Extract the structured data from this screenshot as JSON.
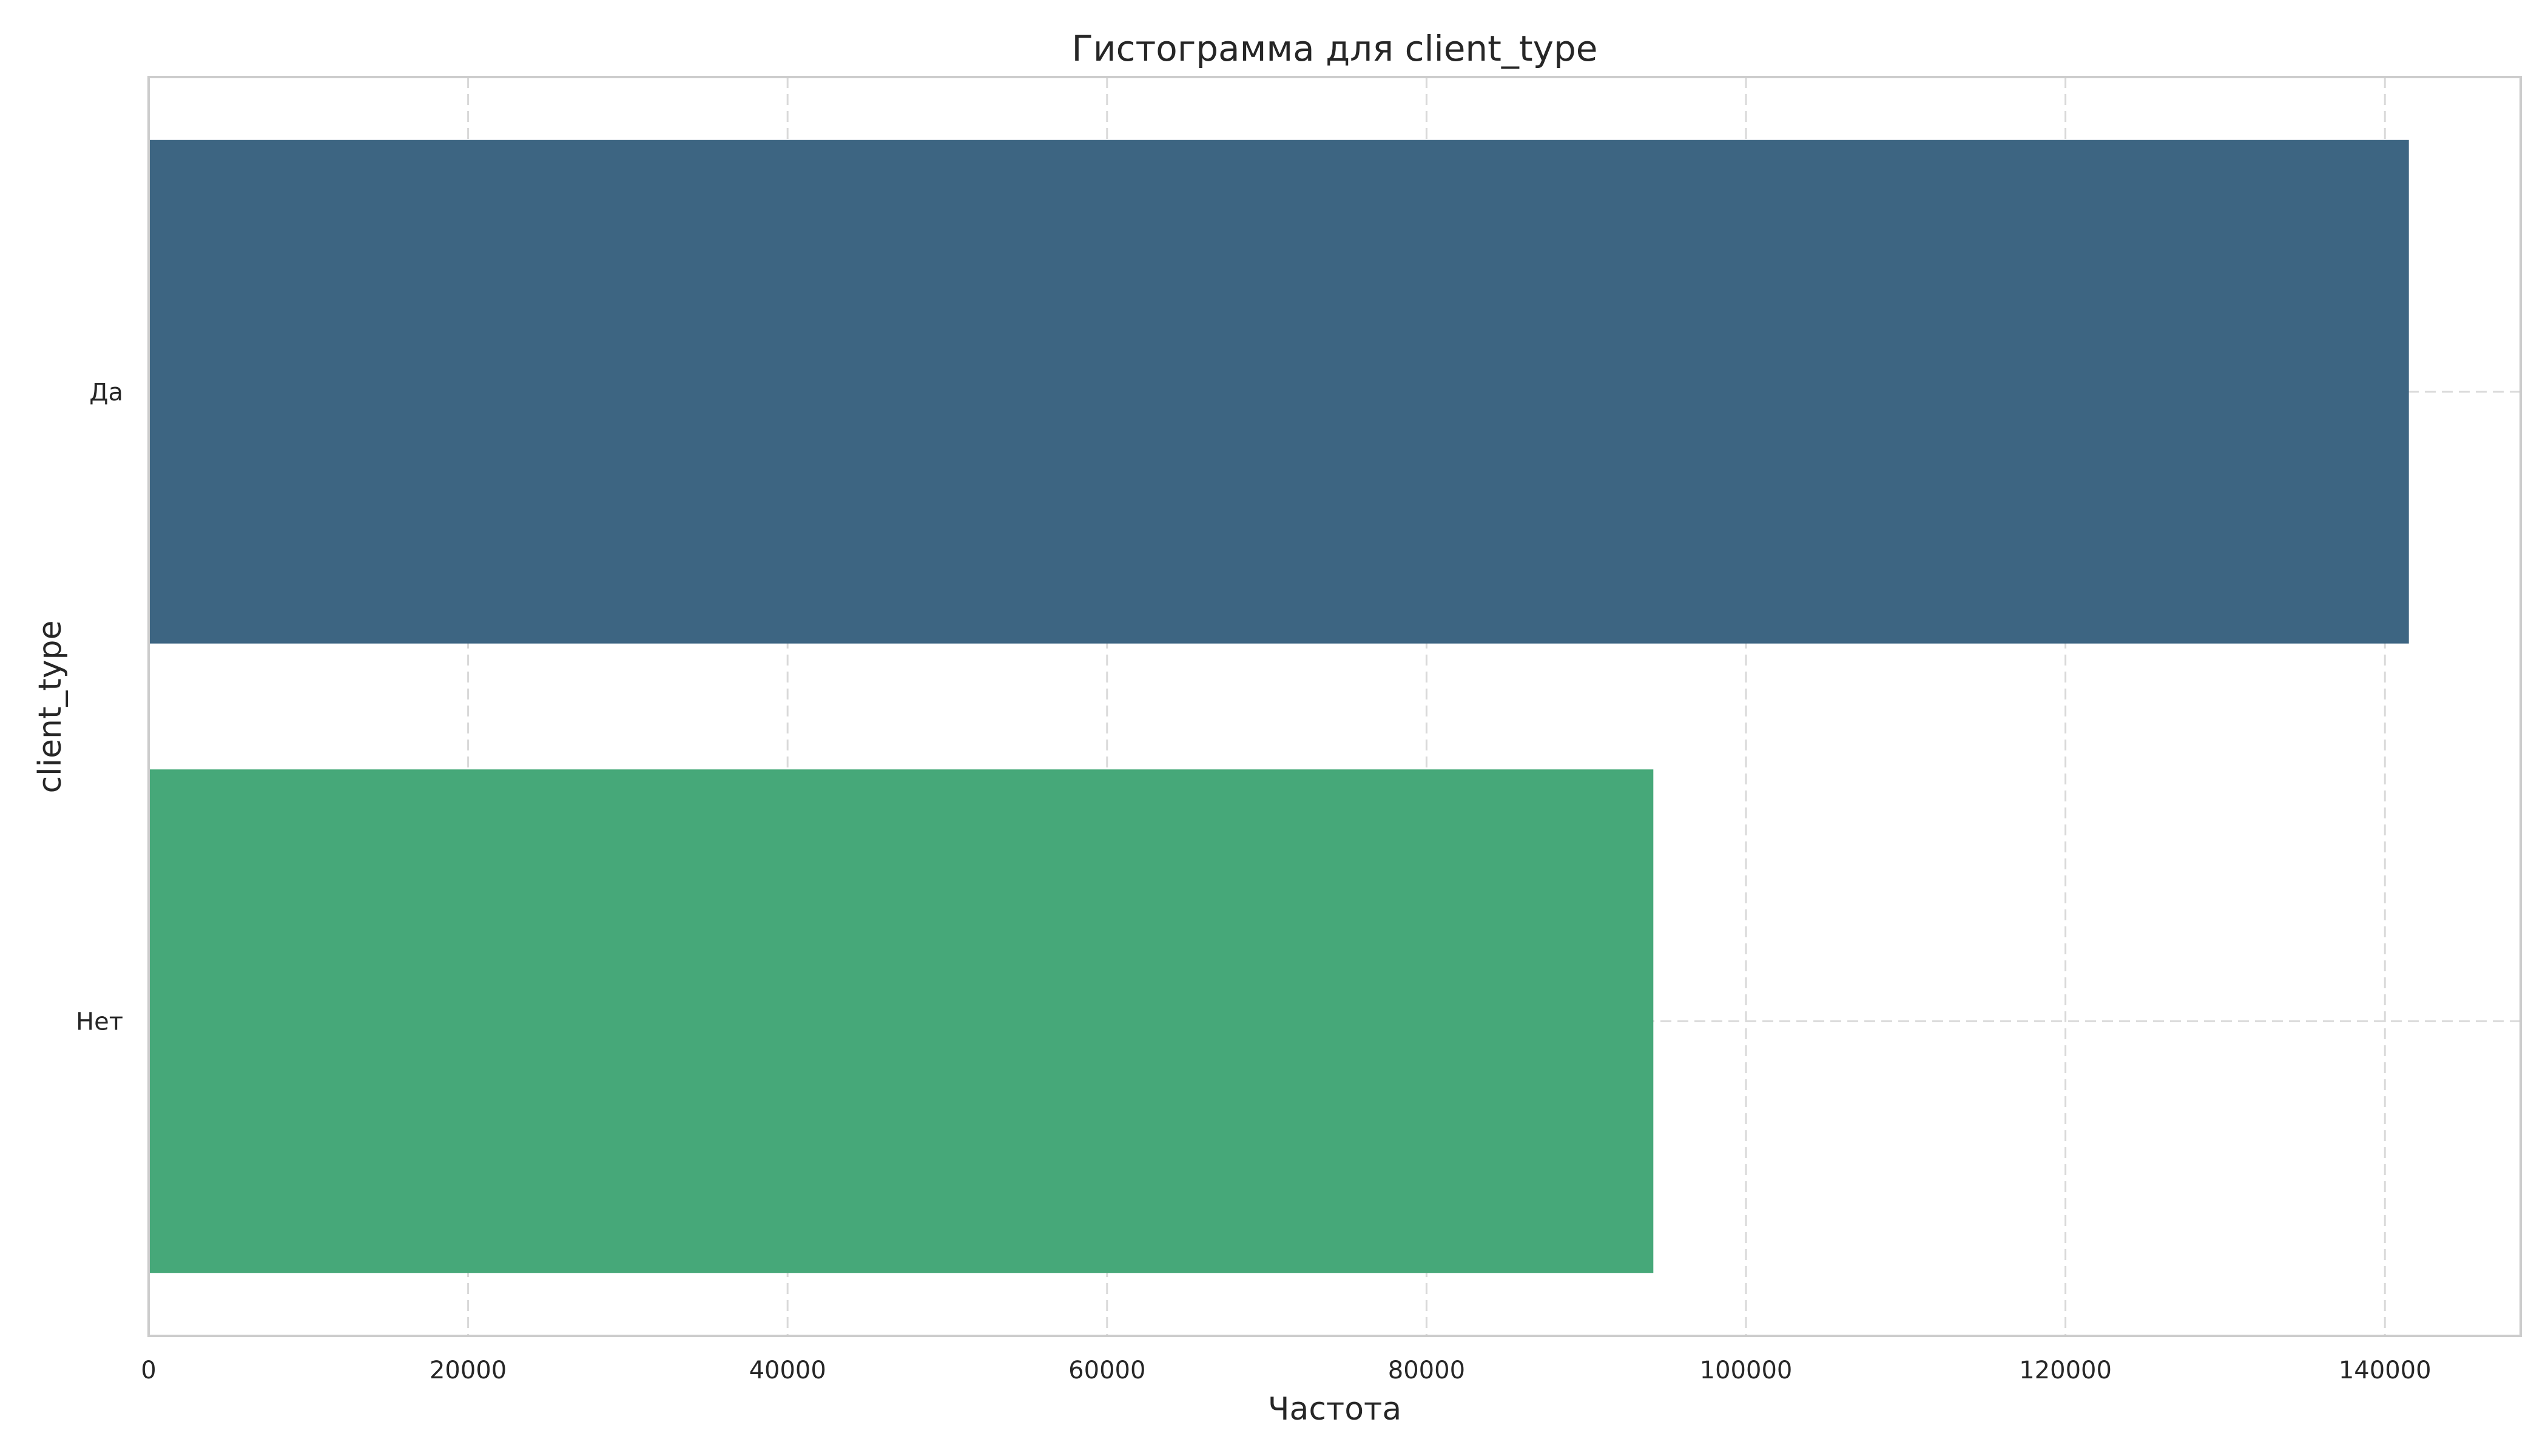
{
  "chart_data": {
    "type": "bar",
    "orientation": "horizontal",
    "title": "Гистограмма для client_type",
    "xlabel": "Частота",
    "ylabel": "client_type",
    "categories": [
      "Да",
      "Нет"
    ],
    "values": [
      141500,
      94200
    ],
    "colors": [
      "#3d6582",
      "#46a879"
    ],
    "xlim": [
      0,
      148500
    ],
    "xticks": [
      0,
      20000,
      40000,
      60000,
      80000,
      100000,
      120000,
      140000
    ],
    "xtick_labels": [
      "0",
      "20000",
      "40000",
      "60000",
      "80000",
      "100000",
      "120000",
      "140000"
    ],
    "grid": true,
    "legend": "none"
  }
}
